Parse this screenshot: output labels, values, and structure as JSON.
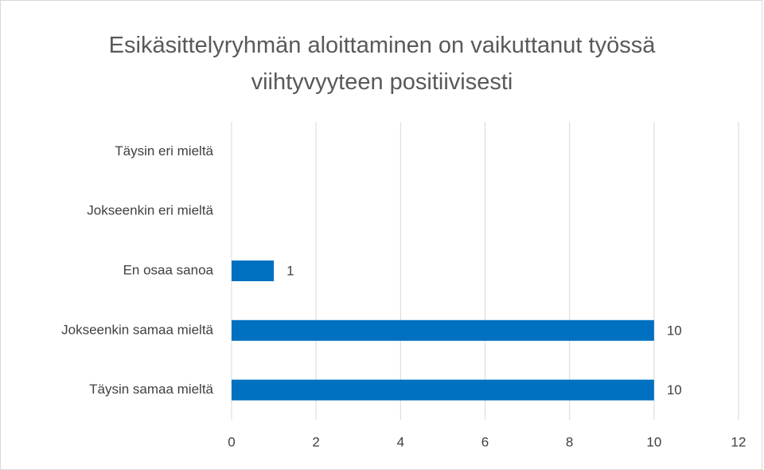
{
  "chart_data": {
    "type": "bar",
    "orientation": "horizontal",
    "title": "Esikäsittelyryhmän aloittaminen on vaikuttanut työssä viihtyvyyteen positiivisesti",
    "categories": [
      "Täysin eri mieltä",
      "Jokseenkin eri mieltä",
      "En osaa sanoa",
      "Jokseenkin samaa mieltä",
      "Täysin samaa mieltä"
    ],
    "values": [
      null,
      null,
      1,
      10,
      10
    ],
    "color": "#0070c0",
    "xlim": [
      0,
      12
    ],
    "xticks": [
      0,
      2,
      4,
      6,
      8,
      10,
      12
    ],
    "grid": true
  }
}
